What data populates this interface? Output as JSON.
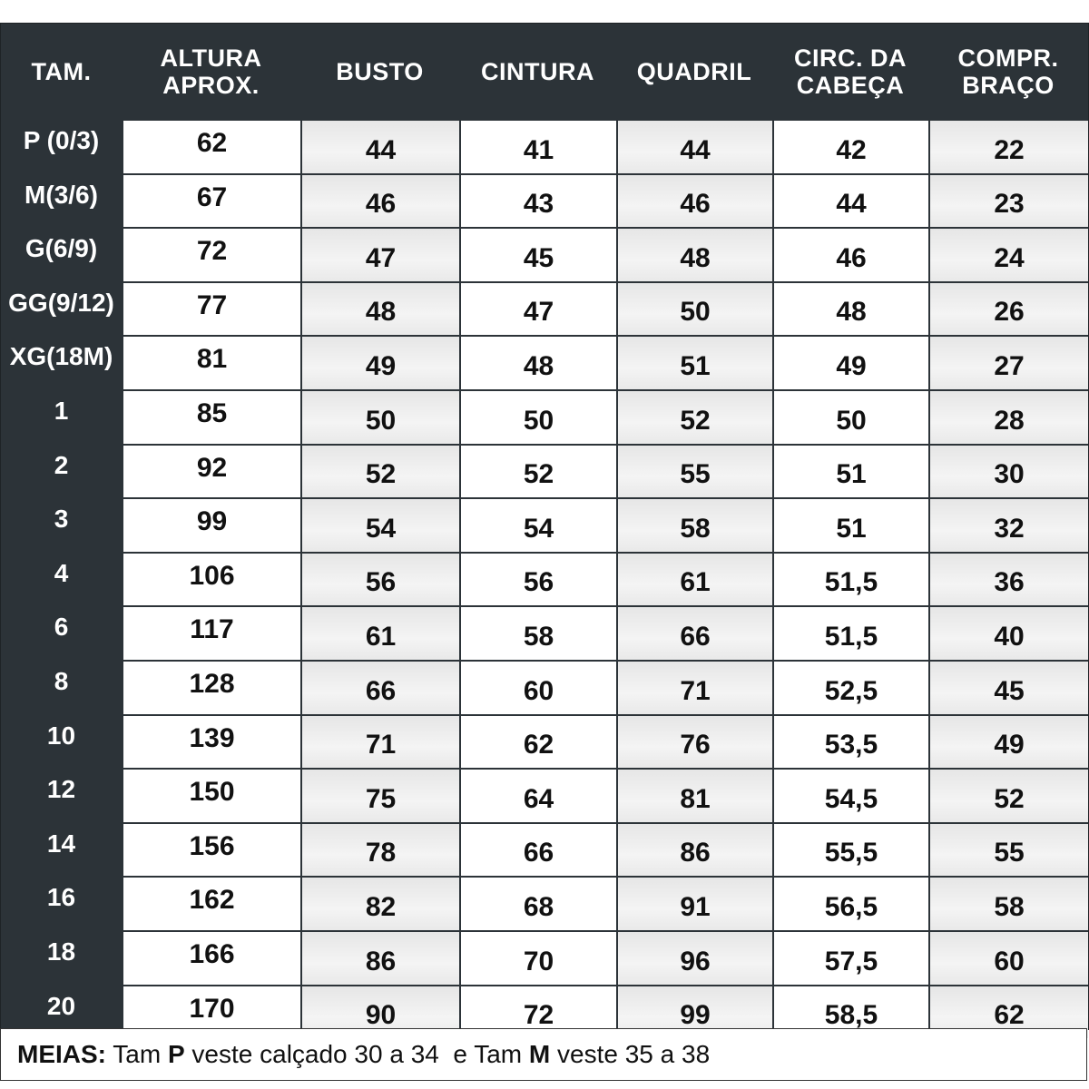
{
  "headers": [
    "TAM.",
    "ALTURA\nAPROX.",
    "BUSTO",
    "CINTURA",
    "QUADRIL",
    "CIRC. DA\nCABEÇA",
    "COMPR.\nBRAÇO"
  ],
  "rows": [
    [
      "P (0/3)",
      "62",
      "44",
      "41",
      "44",
      "42",
      "22"
    ],
    [
      "M(3/6)",
      "67",
      "46",
      "43",
      "46",
      "44",
      "23"
    ],
    [
      "G(6/9)",
      "72",
      "47",
      "45",
      "48",
      "46",
      "24"
    ],
    [
      "GG(9/12)",
      "77",
      "48",
      "47",
      "50",
      "48",
      "26"
    ],
    [
      "XG(18M)",
      "81",
      "49",
      "48",
      "51",
      "49",
      "27"
    ],
    [
      "1",
      "85",
      "50",
      "50",
      "52",
      "50",
      "28"
    ],
    [
      "2",
      "92",
      "52",
      "52",
      "55",
      "51",
      "30"
    ],
    [
      "3",
      "99",
      "54",
      "54",
      "58",
      "51",
      "32"
    ],
    [
      "4",
      "106",
      "56",
      "56",
      "61",
      "51,5",
      "36"
    ],
    [
      "6",
      "117",
      "61",
      "58",
      "66",
      "51,5",
      "40"
    ],
    [
      "8",
      "128",
      "66",
      "60",
      "71",
      "52,5",
      "45"
    ],
    [
      "10",
      "139",
      "71",
      "62",
      "76",
      "53,5",
      "49"
    ],
    [
      "12",
      "150",
      "75",
      "64",
      "81",
      "54,5",
      "52"
    ],
    [
      "14",
      "156",
      "78",
      "66",
      "86",
      "55,5",
      "55"
    ],
    [
      "16",
      "162",
      "82",
      "68",
      "91",
      "56,5",
      "58"
    ],
    [
      "18",
      "166",
      "86",
      "70",
      "96",
      "57,5",
      "60"
    ],
    [
      "20",
      "170",
      "90",
      "72",
      "99",
      "58,5",
      "62"
    ]
  ],
  "footer": {
    "label": "MEIAS:",
    "t1": " Tam ",
    "size1": "P",
    "t2": " veste calçado 30 a 34  e Tam ",
    "size2": "M",
    "t3": " veste 35 a 38"
  },
  "colors": {
    "header_bg": "#2c3338",
    "alt_cell": "#ececec"
  }
}
